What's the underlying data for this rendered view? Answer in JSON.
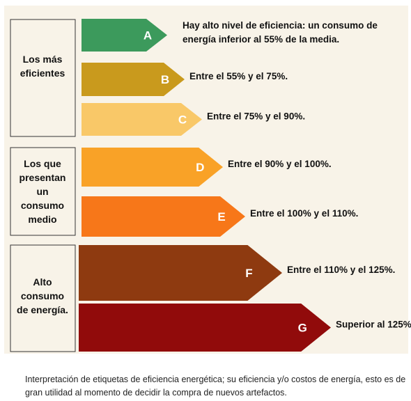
{
  "groups": [
    {
      "lines": [
        "Los más",
        "eficientes"
      ]
    },
    {
      "lines": [
        "Los que",
        "presentan",
        "un",
        "consumo",
        "medio"
      ]
    },
    {
      "lines": [
        "Alto",
        "consumo",
        "de energía."
      ]
    }
  ],
  "bands": [
    {
      "letter": "A",
      "description": [
        "Hay alto nivel de eficiencia: un consumo de",
        "energía inferior al 55% de la media."
      ]
    },
    {
      "letter": "B",
      "description": [
        "Entre el 55% y el 75%."
      ]
    },
    {
      "letter": "C",
      "description": [
        "Entre el 75% y el 90%."
      ]
    },
    {
      "letter": "D",
      "description": [
        "Entre el 90% y el 100%."
      ]
    },
    {
      "letter": "E",
      "description": [
        "Entre el 100% y el 110%."
      ]
    },
    {
      "letter": "F",
      "description": [
        "Entre el 110% y el 125%."
      ]
    },
    {
      "letter": "G",
      "description": [
        "Superior al 125%"
      ]
    }
  ],
  "caption": [
    "Interpretación de etiquetas de eficiencia energética; su eficiencia y/o costos de energía, esto es de",
    "gran utilidad al momento de decidir la compra de nuevos artefactos."
  ]
}
